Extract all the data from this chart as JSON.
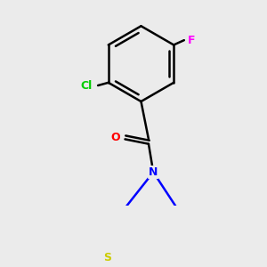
{
  "background_color": "#ebebeb",
  "bond_color": "#000000",
  "bond_width": 1.8,
  "atom_colors": {
    "Cl": "#00cc00",
    "F": "#ff00ff",
    "O": "#ff0000",
    "N": "#0000ff",
    "S": "#cccc00",
    "C": "#000000"
  },
  "figsize": [
    3.0,
    3.0
  ],
  "dpi": 100
}
